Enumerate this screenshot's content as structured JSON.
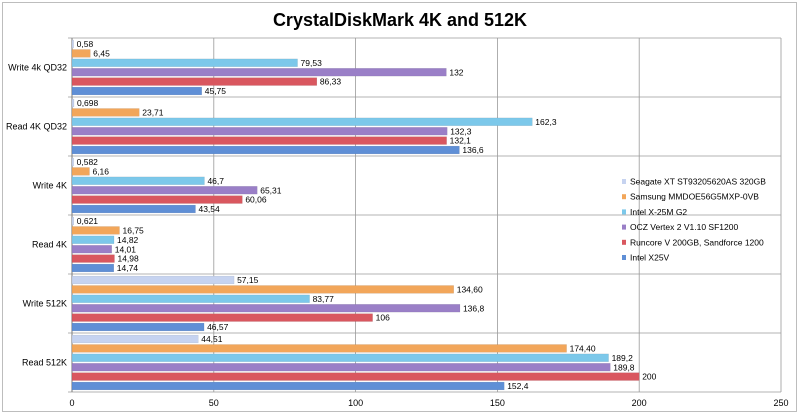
{
  "chart_data": {
    "type": "bar",
    "orientation": "horizontal",
    "title": "CrystalDiskMark 4K and 512K",
    "xlabel": "",
    "ylabel": "",
    "xlim": [
      0,
      250
    ],
    "xticks": [
      "0",
      "50",
      "100",
      "150",
      "200",
      "250"
    ],
    "grid": true,
    "legend_position": "right",
    "categories": [
      "Write 4k QD32",
      "Read 4K QD32",
      "Write 4K",
      "Read 4K",
      "Write 512K",
      "Read 512K"
    ],
    "series": [
      {
        "name": "Seagate XT ST93205620AS 320GB",
        "color": "#c6d3f0",
        "values": [
          0.58,
          0.698,
          0.582,
          0.621,
          57.15,
          44.51
        ],
        "labels": [
          "0,58",
          "0,698",
          "0,582",
          "0,621",
          "57,15",
          "44,51"
        ]
      },
      {
        "name": "Samsung MMDOE56G5MXP-0VB",
        "color": "#f2a65a",
        "values": [
          6.45,
          23.71,
          6.16,
          16.75,
          134.6,
          174.4
        ],
        "labels": [
          "6,45",
          "23,71",
          "6,16",
          "16,75",
          "134,60",
          "174,40"
        ]
      },
      {
        "name": "Intel X-25M G2",
        "color": "#7cc8ea",
        "values": [
          79.53,
          162.3,
          46.7,
          14.82,
          83.77,
          189.2
        ],
        "labels": [
          "79,53",
          "162,3",
          "46,7",
          "14,82",
          "83,77",
          "189,2"
        ]
      },
      {
        "name": "OCZ Vertex 2 V1.10 SF1200",
        "color": "#9a7fc7",
        "values": [
          132,
          132.3,
          65.31,
          14.01,
          136.8,
          189.8
        ],
        "labels": [
          "132",
          "132,3",
          "65,31",
          "14,01",
          "136,8",
          "189,8"
        ]
      },
      {
        "name": "Runcore V 200GB, Sandforce 1200",
        "color": "#d9575f",
        "values": [
          86.33,
          132.1,
          60.06,
          14.98,
          106,
          200
        ],
        "labels": [
          "86,33",
          "132,1",
          "60,06",
          "14,98",
          "106",
          "200"
        ]
      },
      {
        "name": "Intel X25V",
        "color": "#5f8fd6",
        "values": [
          45.75,
          136.6,
          43.54,
          14.74,
          46.57,
          152.4
        ],
        "labels": [
          "45,75",
          "136,6",
          "43,54",
          "14,74",
          "46,57",
          "152,4"
        ]
      }
    ]
  }
}
